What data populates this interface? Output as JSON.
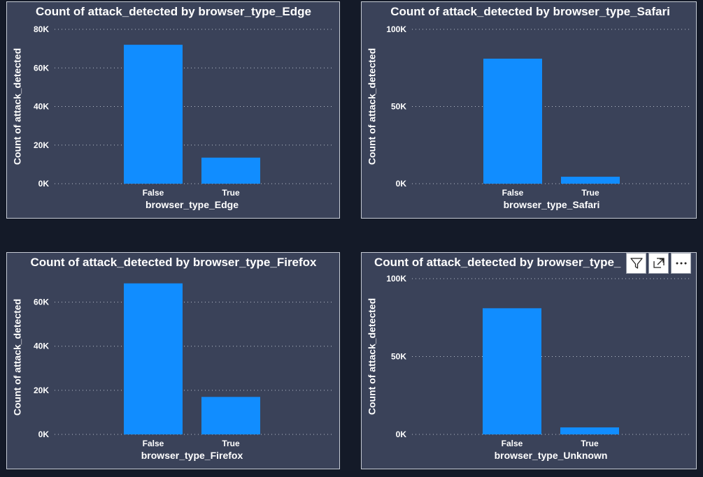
{
  "colors": {
    "background": "#141a28",
    "panel": "#3a4259",
    "bar": "#118dff",
    "text": "#ffffff"
  },
  "toolbar": {
    "icons": [
      "filter-icon",
      "focus-mode-icon",
      "more-options-icon"
    ]
  },
  "chart_data": [
    {
      "type": "bar",
      "title": "Count of attack_detected by browser_type_Edge",
      "xlabel": "browser_type_Edge",
      "ylabel": "Count of attack_detected",
      "categories": [
        "False",
        "True"
      ],
      "values": [
        72000,
        13500
      ],
      "ylim": [
        0,
        80000
      ],
      "yticks": [
        0,
        20000,
        40000,
        60000,
        80000
      ],
      "ytick_labels": [
        "0K",
        "20K",
        "40K",
        "60K",
        "80K"
      ],
      "grid": true
    },
    {
      "type": "bar",
      "title": "Count of attack_detected by browser_type_Safari",
      "xlabel": "browser_type_Safari",
      "ylabel": "Count of attack_detected",
      "categories": [
        "False",
        "True"
      ],
      "values": [
        81000,
        4500
      ],
      "ylim": [
        0,
        100000
      ],
      "yticks": [
        0,
        50000,
        100000
      ],
      "ytick_labels": [
        "0K",
        "50K",
        "100K"
      ],
      "grid": true
    },
    {
      "type": "bar",
      "title": "Count of attack_detected by browser_type_Firefox",
      "xlabel": "browser_type_Firefox",
      "ylabel": "Count of attack_detected",
      "categories": [
        "False",
        "True"
      ],
      "values": [
        68500,
        17000
      ],
      "ylim": [
        0,
        70000
      ],
      "yticks": [
        0,
        20000,
        40000,
        60000
      ],
      "ytick_labels": [
        "0K",
        "20K",
        "40K",
        "60K"
      ],
      "grid": true
    },
    {
      "type": "bar",
      "title": "Count of attack_detected by browser_type_",
      "xlabel": "browser_type_Unknown",
      "ylabel": "Count of attack_detected",
      "categories": [
        "False",
        "True"
      ],
      "values": [
        81000,
        4500
      ],
      "ylim": [
        0,
        100000
      ],
      "yticks": [
        0,
        50000,
        100000
      ],
      "ytick_labels": [
        "0K",
        "50K",
        "100K"
      ],
      "grid": true
    }
  ]
}
